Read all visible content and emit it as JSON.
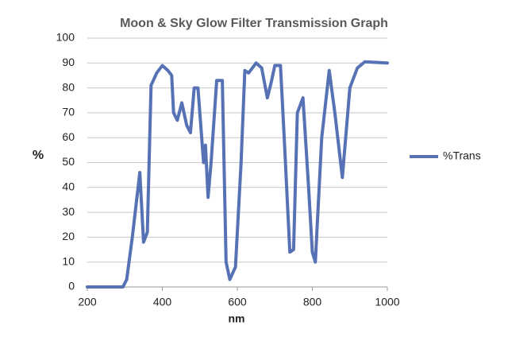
{
  "chart_data": {
    "type": "line",
    "title": "Moon & Sky Glow Filter Transmission Graph",
    "x_label": "nm",
    "y_label": "%",
    "x": [
      200,
      295,
      305,
      320,
      340,
      350,
      360,
      370,
      385,
      400,
      415,
      425,
      430,
      440,
      452,
      465,
      475,
      485,
      495,
      505,
      510,
      515,
      522,
      530,
      545,
      560,
      570,
      580,
      595,
      610,
      620,
      630,
      650,
      665,
      680,
      690,
      700,
      715,
      725,
      740,
      750,
      760,
      775,
      790,
      800,
      808,
      825,
      845,
      860,
      880,
      900,
      920,
      940,
      1000
    ],
    "series": [
      {
        "name": "%Trans",
        "color": "#5672b4",
        "values": [
          0,
          0,
          3,
          20,
          46,
          18,
          22,
          81,
          86,
          89,
          87,
          85,
          70,
          67,
          74,
          65,
          62,
          80,
          80,
          60,
          50,
          57,
          36,
          50,
          83,
          83,
          10,
          3,
          8,
          50,
          87,
          86,
          90,
          88,
          76,
          82,
          89,
          89,
          60,
          14,
          15,
          70,
          76,
          40,
          14,
          10,
          60,
          87,
          70,
          44,
          80,
          88,
          90.5,
          90
        ]
      }
    ],
    "xlim": [
      200,
      1000
    ],
    "xticks": [
      200,
      400,
      600,
      800,
      1000
    ],
    "ylim": [
      0,
      100
    ],
    "yticks": [
      0,
      10,
      20,
      30,
      40,
      50,
      60,
      70,
      80,
      90,
      100
    ],
    "grid": true,
    "legend": "right"
  }
}
